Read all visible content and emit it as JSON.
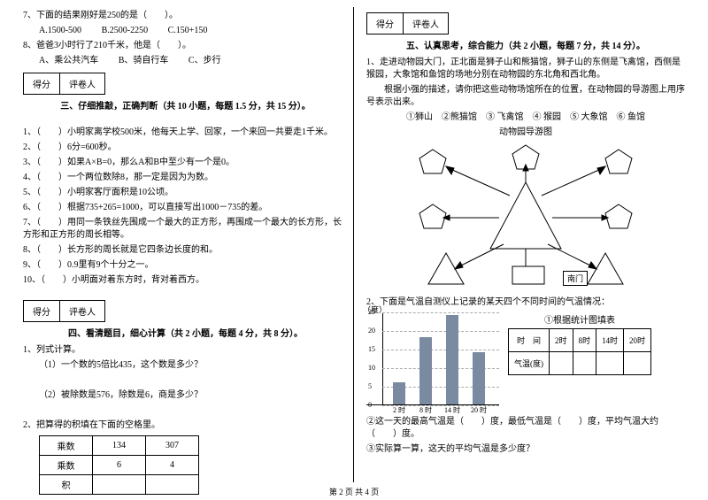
{
  "left": {
    "q7": "7、下面的结果刚好是250的是（　　）。",
    "q7a": "A.1500-500",
    "q7b": "B.2500-2250",
    "q7c": "C.150+150",
    "q8": "8、爸爸3小时行了210千米，他是（　　）。",
    "q8a": "A、乘公共汽车",
    "q8b": "B、骑自行车",
    "q8c": "C、步行",
    "scoreA": "得分",
    "scoreB": "评卷人",
    "sec3": "三、仔细推敲，正确判断（共 10 小题，每题 1.5 分，共 15 分）。",
    "j1": "1、（　　）小明家离学校500米，他每天上学、回家，一个来回一共要走1千米。",
    "j2": "2、（　　）6分=600秒。",
    "j3": "3、（　　）如果A×B=0，那么A和B中至少有一个是0。",
    "j4": "4、（　　）一个两位数除8，那一定是因为为数。",
    "j5": "5、（　　）小明家客厅面积是10公顷。",
    "j6": "6、（　　）根据735+265=1000，可以直接写出1000－735的差。",
    "j7": "7、（　　）用同一条铁丝先围成一个最大的正方形，再围成一个最大的长方形，长方形和正方形的周长相等。",
    "j8": "8、（　　）长方形的周长就是它四条边长度的和。",
    "j9": "9、（　　）0.9里有9个十分之一。",
    "j10": "10、（　　）小明面对着东方时，背对着西方。",
    "sec4": "四、看清题目，细心计算（共 2 小题，每题 4 分，共 8 分）。",
    "c1": "1、列式计算。",
    "c1a": "（1）一个数的5倍比435，这个数是多少？",
    "c1b": "（2）被除数是576，除数是6，商是多少？",
    "c2": "2、把算得的积填在下面的空格里。",
    "th1": "乘数",
    "td11": "134",
    "td12": "307",
    "th2": "乘数",
    "td21": "6",
    "td22": "4",
    "th3": "积"
  },
  "right": {
    "scoreA": "得分",
    "scoreB": "评卷人",
    "sec5": "五、认真思考，综合能力（共 2 小题，每题 7 分，共 14 分）。",
    "p1": "1、走进动物园大门，正北面是狮子山和熊猫馆，狮子山的东侧是飞禽馆，西侧是猴园，大象馆和鱼馆的场地分别在动物园的东北角和西北角。",
    "p1b": "　　根据小强的描述，请你把这些动物场馆所在的位置，在动物园的导游图上用序号表示出来。",
    "legend": "①狮山　②熊猫馆　③ 飞禽馆　④ 猴园　⑤ 大象馆　⑥ 鱼馆",
    "mapTitle": "动物园导游图",
    "gate": "南门",
    "p2": "2、下面是气温自测仪上记录的某天四个不同时间的气温情况：",
    "chartYUnit": "（度）",
    "statTitle": "①根据统计图填表",
    "tblTime": "时　间",
    "t1": "2时",
    "t2": "8时",
    "t3": "14时",
    "t4": "20时",
    "tblTemp": "气温(度)",
    "xl1": "2 时",
    "xl2": "8 时",
    "xl3": "14 时",
    "xl4": "20 时",
    "yticks": [
      0,
      5,
      10,
      15,
      20,
      25
    ],
    "bars": {
      "values": [
        6,
        18,
        24,
        14
      ],
      "ymax": 25,
      "colors": [
        "#7a8aa0",
        "#7a8aa0",
        "#7a8aa0",
        "#7a8aa0"
      ]
    },
    "p2b": "②这一天的最高气温是（　　）度，最低气温是（　　）度，平均气温大约（　　）度。",
    "p2c": "③实际算一算，这天的平均气温是多少度？"
  },
  "footer": "第 2 页 共 4 页"
}
